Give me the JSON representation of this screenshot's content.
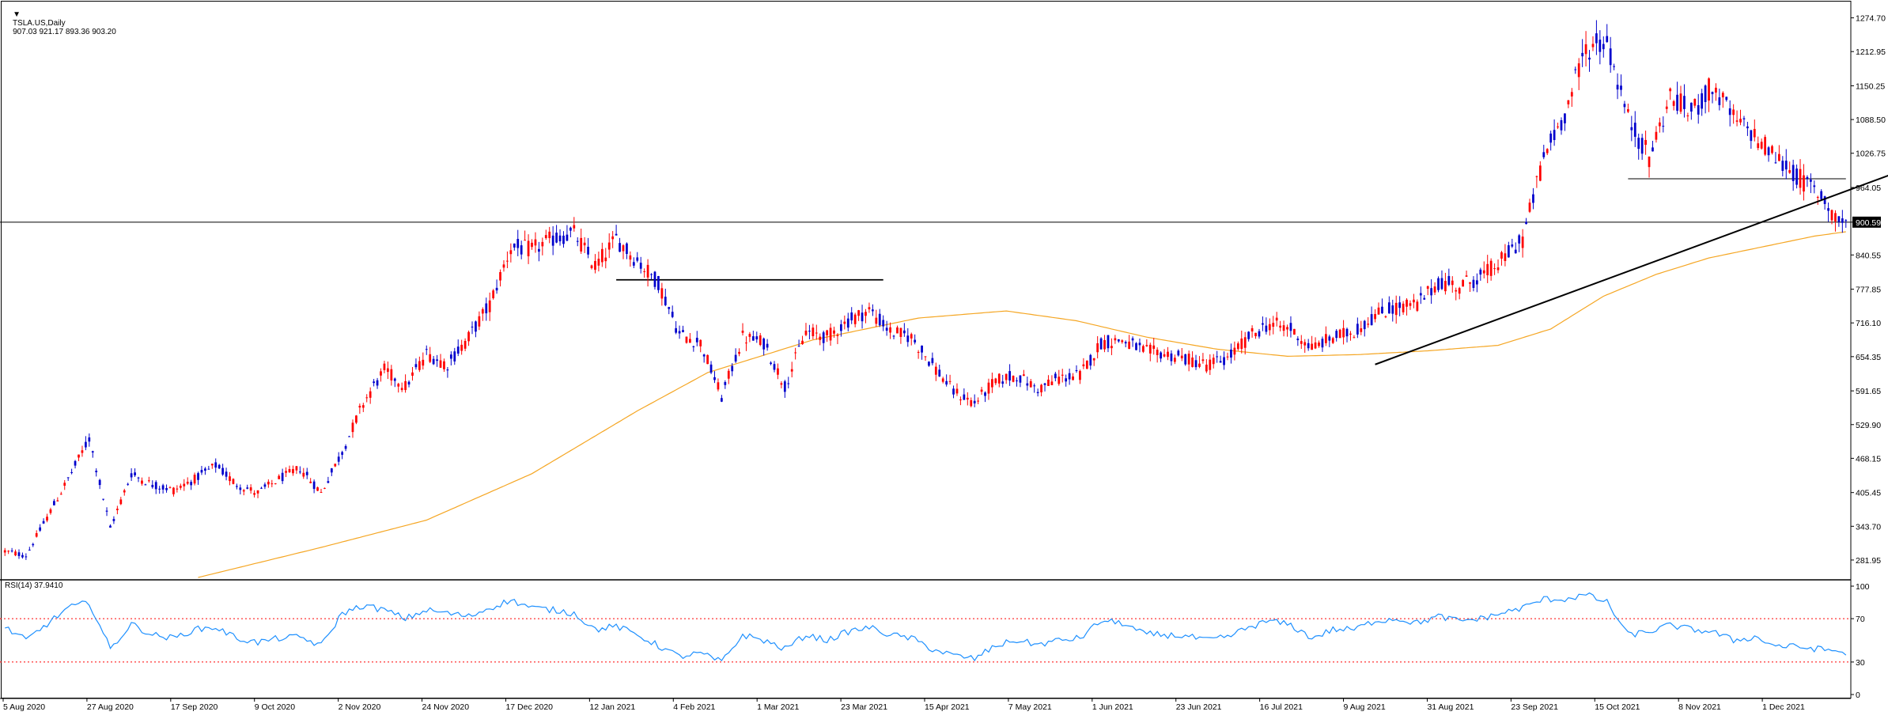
{
  "header": {
    "symbol": "TSLA.US,Daily",
    "ohlc": "907.03 921.17 893.36 903.20"
  },
  "rsi_panel": {
    "label": "RSI(14) 37.9410",
    "ticks": [
      "100",
      "70",
      "30",
      "0"
    ]
  },
  "colors": {
    "bull": "#0000cc",
    "bear": "#ff0000",
    "ma": "#f5a623",
    "rsi": "#1e90ff",
    "rsi_levels": "#ff0000",
    "trendline": "#000000",
    "price_tag_bg": "#000000",
    "price_tag_text": "#ffffff"
  },
  "chart_data": {
    "type": "candlestick",
    "symbol": "TSLA.US",
    "timeframe": "Daily",
    "current_price_label": "900.59",
    "price_axis": {
      "ticks": [
        "1274.70",
        "1212.95",
        "1150.25",
        "1088.50",
        "1026.75",
        "964.05",
        "900.59",
        "840.55",
        "777.85",
        "716.10",
        "654.35",
        "591.65",
        "529.90",
        "468.15",
        "405.45",
        "343.70",
        "281.95"
      ],
      "range": [
        250,
        1290
      ]
    },
    "rsi_axis": {
      "range": [
        0,
        100
      ],
      "levels": [
        70,
        30
      ]
    },
    "x_axis": {
      "labels": [
        "5 Aug 2020",
        "27 Aug 2020",
        "17 Sep 2020",
        "9 Oct 2020",
        "2 Nov 2020",
        "24 Nov 2020",
        "17 Dec 2020",
        "12 Jan 2021",
        "4 Feb 2021",
        "1 Mar 2021",
        "23 Mar 2021",
        "15 Apr 2021",
        "7 May 2021",
        "1 Jun 2021",
        "23 Jun 2021",
        "16 Jul 2021",
        "9 Aug 2021",
        "31 Aug 2021",
        "23 Sep 2021",
        "15 Oct 2021",
        "8 Nov 2021",
        "1 Dec 2021"
      ]
    },
    "price_anchors": [
      [
        0,
        298
      ],
      [
        6,
        290
      ],
      [
        12,
        360
      ],
      [
        18,
        430
      ],
      [
        24,
        505
      ],
      [
        30,
        340
      ],
      [
        36,
        440
      ],
      [
        42,
        420
      ],
      [
        48,
        410
      ],
      [
        54,
        430
      ],
      [
        60,
        455
      ],
      [
        66,
        420
      ],
      [
        72,
        405
      ],
      [
        78,
        430
      ],
      [
        84,
        450
      ],
      [
        90,
        405
      ],
      [
        96,
        480
      ],
      [
        102,
        570
      ],
      [
        108,
        630
      ],
      [
        114,
        600
      ],
      [
        120,
        660
      ],
      [
        126,
        640
      ],
      [
        132,
        690
      ],
      [
        138,
        750
      ],
      [
        144,
        855
      ],
      [
        150,
        850
      ],
      [
        156,
        870
      ],
      [
        162,
        880
      ],
      [
        168,
        820
      ],
      [
        174,
        870
      ],
      [
        180,
        830
      ],
      [
        186,
        790
      ],
      [
        192,
        695
      ],
      [
        198,
        680
      ],
      [
        204,
        580
      ],
      [
        210,
        690
      ],
      [
        216,
        680
      ],
      [
        222,
        600
      ],
      [
        228,
        700
      ],
      [
        234,
        690
      ],
      [
        240,
        720
      ],
      [
        246,
        740
      ],
      [
        252,
        700
      ],
      [
        258,
        690
      ],
      [
        264,
        640
      ],
      [
        270,
        590
      ],
      [
        276,
        570
      ],
      [
        282,
        610
      ],
      [
        288,
        620
      ],
      [
        294,
        595
      ],
      [
        300,
        615
      ],
      [
        306,
        620
      ],
      [
        312,
        680
      ],
      [
        318,
        685
      ],
      [
        324,
        665
      ],
      [
        330,
        660
      ],
      [
        336,
        650
      ],
      [
        342,
        640
      ],
      [
        348,
        650
      ],
      [
        354,
        690
      ],
      [
        360,
        715
      ],
      [
        366,
        705
      ],
      [
        372,
        670
      ],
      [
        378,
        690
      ],
      [
        384,
        700
      ],
      [
        390,
        730
      ],
      [
        396,
        745
      ],
      [
        402,
        750
      ],
      [
        408,
        790
      ],
      [
        414,
        785
      ],
      [
        420,
        800
      ],
      [
        426,
        830
      ],
      [
        432,
        870
      ],
      [
        438,
        1020
      ],
      [
        444,
        1100
      ],
      [
        450,
        1220
      ],
      [
        456,
        1230
      ],
      [
        462,
        1090
      ],
      [
        468,
        1020
      ],
      [
        474,
        1130
      ],
      [
        480,
        1100
      ],
      [
        486,
        1150
      ],
      [
        492,
        1090
      ],
      [
        498,
        1060
      ],
      [
        504,
        1020
      ],
      [
        510,
        985
      ],
      [
        516,
        955
      ],
      [
        522,
        905
      ],
      [
        524,
        900
      ]
    ],
    "ma_anchors": [
      [
        55,
        250
      ],
      [
        90,
        305
      ],
      [
        120,
        355
      ],
      [
        150,
        440
      ],
      [
        180,
        555
      ],
      [
        200,
        625
      ],
      [
        230,
        685
      ],
      [
        260,
        725
      ],
      [
        285,
        738
      ],
      [
        305,
        720
      ],
      [
        325,
        690
      ],
      [
        345,
        668
      ],
      [
        365,
        655
      ],
      [
        385,
        658
      ],
      [
        405,
        665
      ],
      [
        425,
        675
      ],
      [
        440,
        705
      ],
      [
        455,
        765
      ],
      [
        470,
        805
      ],
      [
        485,
        835
      ],
      [
        500,
        855
      ],
      [
        515,
        875
      ],
      [
        524,
        883
      ]
    ],
    "rsi_anchors": [
      [
        0,
        62
      ],
      [
        6,
        50
      ],
      [
        12,
        65
      ],
      [
        18,
        80
      ],
      [
        24,
        85
      ],
      [
        30,
        42
      ],
      [
        36,
        65
      ],
      [
        42,
        55
      ],
      [
        48,
        52
      ],
      [
        54,
        60
      ],
      [
        60,
        62
      ],
      [
        66,
        52
      ],
      [
        72,
        48
      ],
      [
        78,
        52
      ],
      [
        84,
        53
      ],
      [
        90,
        45
      ],
      [
        96,
        75
      ],
      [
        102,
        82
      ],
      [
        108,
        78
      ],
      [
        114,
        70
      ],
      [
        120,
        78
      ],
      [
        126,
        75
      ],
      [
        132,
        72
      ],
      [
        138,
        80
      ],
      [
        144,
        87
      ],
      [
        150,
        80
      ],
      [
        156,
        78
      ],
      [
        162,
        75
      ],
      [
        168,
        60
      ],
      [
        174,
        63
      ],
      [
        180,
        55
      ],
      [
        186,
        45
      ],
      [
        192,
        35
      ],
      [
        198,
        38
      ],
      [
        204,
        30
      ],
      [
        210,
        55
      ],
      [
        216,
        50
      ],
      [
        222,
        42
      ],
      [
        228,
        55
      ],
      [
        234,
        50
      ],
      [
        240,
        58
      ],
      [
        246,
        62
      ],
      [
        252,
        55
      ],
      [
        258,
        52
      ],
      [
        264,
        42
      ],
      [
        270,
        36
      ],
      [
        276,
        33
      ],
      [
        282,
        45
      ],
      [
        288,
        50
      ],
      [
        294,
        46
      ],
      [
        300,
        50
      ],
      [
        306,
        52
      ],
      [
        312,
        68
      ],
      [
        318,
        66
      ],
      [
        324,
        56
      ],
      [
        330,
        55
      ],
      [
        336,
        54
      ],
      [
        342,
        50
      ],
      [
        348,
        53
      ],
      [
        354,
        62
      ],
      [
        360,
        68
      ],
      [
        366,
        64
      ],
      [
        372,
        52
      ],
      [
        378,
        60
      ],
      [
        384,
        60
      ],
      [
        390,
        68
      ],
      [
        396,
        70
      ],
      [
        402,
        66
      ],
      [
        408,
        72
      ],
      [
        414,
        68
      ],
      [
        420,
        70
      ],
      [
        426,
        75
      ],
      [
        432,
        80
      ],
      [
        438,
        88
      ],
      [
        444,
        88
      ],
      [
        450,
        92
      ],
      [
        456,
        85
      ],
      [
        462,
        55
      ],
      [
        468,
        58
      ],
      [
        474,
        64
      ],
      [
        480,
        60
      ],
      [
        486,
        58
      ],
      [
        492,
        50
      ],
      [
        498,
        53
      ],
      [
        504,
        45
      ],
      [
        510,
        44
      ],
      [
        516,
        42
      ],
      [
        522,
        40
      ],
      [
        524,
        38
      ]
    ],
    "horizontal_lines": [
      {
        "y": 900.59,
        "x_from": 0,
        "x_to": 524,
        "full_width": true
      },
      {
        "y": 795,
        "x_from": 174,
        "x_to": 250
      },
      {
        "y": 980,
        "x_from": 462,
        "x_to": 524
      }
    ],
    "trendlines": [
      {
        "x1": 390,
        "y1": 640,
        "x2": 542,
        "y2": 1000
      }
    ]
  }
}
